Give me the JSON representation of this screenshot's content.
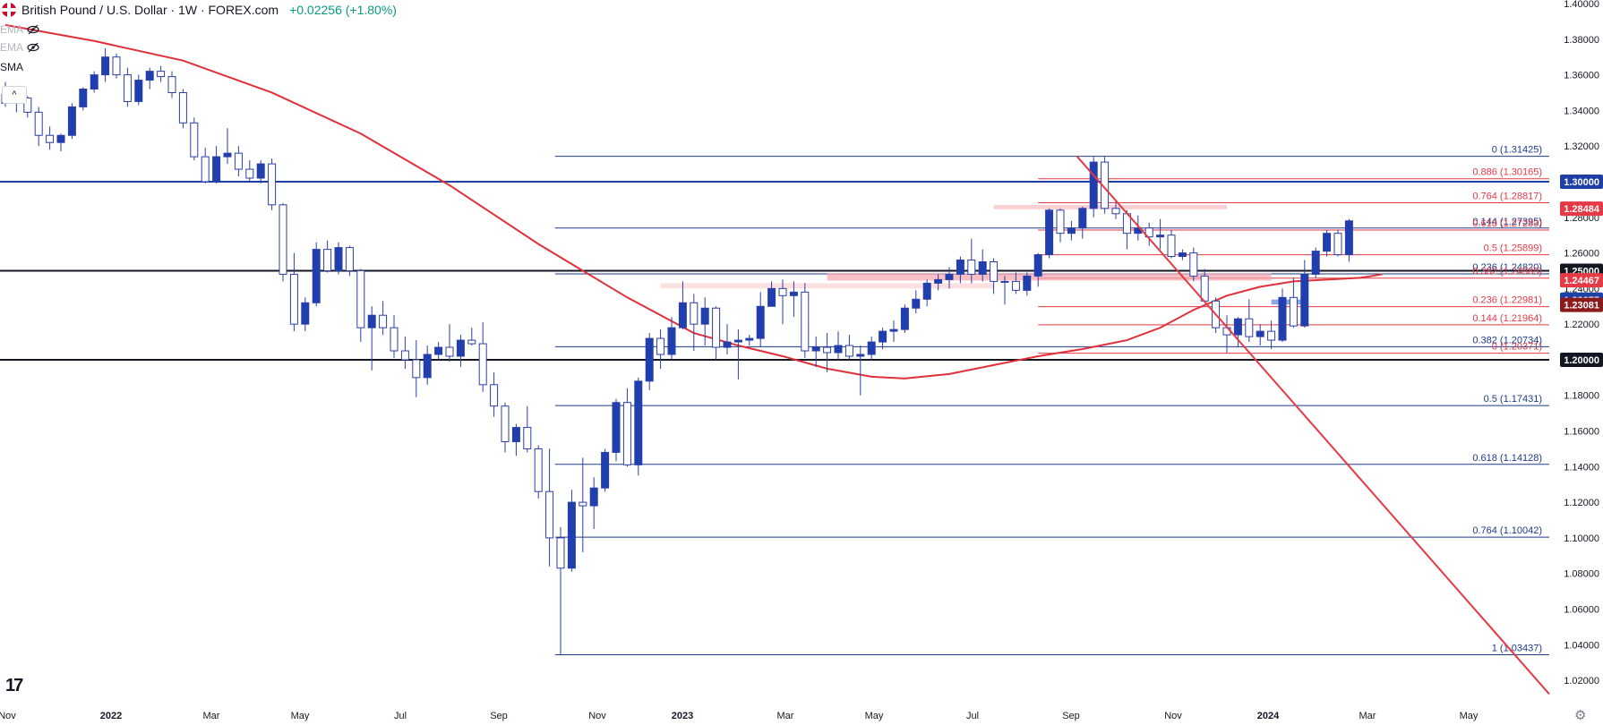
{
  "header": {
    "title": "British Pound / U.S. Dollar · 1W · FOREX.com",
    "change": "+0.02256 (+1.80%)"
  },
  "indicators": [
    "EMA",
    "EMA",
    "SMA"
  ],
  "collapse_glyph": "^",
  "logo_text": "17",
  "colors": {
    "up": "#2962ff",
    "down": "#0d2dbd",
    "bull_body": "#ffffff",
    "bear_body": "#1f3fae",
    "candle_outline": "#2c3fa5",
    "fib_blue": "#1e3a8a",
    "fib_red": "#e53945",
    "ma": "#e0303a",
    "accent_blue": "#1e3fa6",
    "accent_red": "#e53945"
  },
  "chart_data": {
    "type": "candlestick",
    "symbol": "British Pound / U.S. Dollar",
    "timeframe": "1W",
    "ylim": [
      1.01,
      1.4
    ],
    "y_ticks": [
      "1.40000",
      "1.38000",
      "1.36000",
      "1.34000",
      "1.32000",
      "1.30000",
      "1.28000",
      "1.26000",
      "1.24000",
      "1.22000",
      "1.20000",
      "1.18000",
      "1.16000",
      "1.14000",
      "1.12000",
      "1.10000",
      "1.08000",
      "1.06000",
      "1.04000",
      "1.02000"
    ],
    "x_ticks": [
      "Nov",
      "2022",
      "Mar",
      "May",
      "Jul",
      "Sep",
      "Nov",
      "2023",
      "Mar",
      "May",
      "Jul",
      "Sep",
      "Nov",
      "2024",
      "Mar",
      "May"
    ],
    "price_badges": [
      {
        "label": "1.30000",
        "price": 1.3,
        "color": "#1e3fa6"
      },
      {
        "label": "1.28484",
        "price": 1.28484,
        "color": "#e53945"
      },
      {
        "label": "1.25000",
        "price": 1.25,
        "color": "#131722"
      },
      {
        "label": "1.24467",
        "price": 1.24467,
        "color": "#e53945"
      },
      {
        "label": "1.23375",
        "price": 1.23375,
        "color": "#1e3fa6"
      },
      {
        "label": "1.23081",
        "price": 1.23081,
        "color": "#8b1a1a"
      },
      {
        "label": "1.20000",
        "price": 1.2,
        "color": "#131722"
      }
    ],
    "fib_blue": [
      {
        "label": "0 (1.31425)",
        "price": 1.31425
      },
      {
        "label": "0.144 (1.27395)",
        "price": 1.27395
      },
      {
        "label": "0.236 (1.24820)",
        "price": 1.2482
      },
      {
        "label": "0.382 (1.20734)",
        "price": 1.20734
      },
      {
        "label": "0.5 (1.17431)",
        "price": 1.17431
      },
      {
        "label": "0.618 (1.14128)",
        "price": 1.14128
      },
      {
        "label": "0.764 (1.10042)",
        "price": 1.10042
      },
      {
        "label": "1 (1.03437)",
        "price": 1.03437
      }
    ],
    "fib_red": [
      {
        "label": "0.886 (1.30165)",
        "price": 1.30165
      },
      {
        "label": "0.764 (1.28817)",
        "price": 1.28817
      },
      {
        "label": "0.618 (1.27283)",
        "price": 1.27283
      },
      {
        "label": "0.5 (1.25899)",
        "price": 1.25899
      },
      {
        "label": "0.382 (1.24585)",
        "price": 1.24585
      },
      {
        "label": "0.236 (1.22981)",
        "price": 1.22981
      },
      {
        "label": "0.144 (1.21964)",
        "price": 1.21964
      },
      {
        "label": "0 (1.20371)",
        "price": 1.20371
      }
    ],
    "horizontal_levels": [
      {
        "price": 1.3,
        "color": "#1e3fa6"
      },
      {
        "price": 1.25,
        "color": "#131722"
      },
      {
        "price": 1.2,
        "color": "#131722"
      }
    ],
    "candles": [
      [
        1.349,
        1.356,
        1.342,
        1.344
      ],
      [
        1.344,
        1.351,
        1.339,
        1.347
      ],
      [
        1.347,
        1.348,
        1.336,
        1.339
      ],
      [
        1.339,
        1.342,
        1.32,
        1.326
      ],
      [
        1.326,
        1.331,
        1.318,
        1.322
      ],
      [
        1.322,
        1.327,
        1.317,
        1.326
      ],
      [
        1.326,
        1.344,
        1.324,
        1.342
      ],
      [
        1.342,
        1.353,
        1.34,
        1.352
      ],
      [
        1.352,
        1.362,
        1.35,
        1.36
      ],
      [
        1.36,
        1.375,
        1.356,
        1.37
      ],
      [
        1.37,
        1.372,
        1.358,
        1.36
      ],
      [
        1.36,
        1.364,
        1.342,
        1.345
      ],
      [
        1.345,
        1.36,
        1.343,
        1.357
      ],
      [
        1.357,
        1.364,
        1.352,
        1.362
      ],
      [
        1.362,
        1.365,
        1.356,
        1.359
      ],
      [
        1.359,
        1.362,
        1.347,
        1.35
      ],
      [
        1.35,
        1.352,
        1.33,
        1.333
      ],
      [
        1.333,
        1.336,
        1.312,
        1.314
      ],
      [
        1.314,
        1.319,
        1.299,
        1.3
      ],
      [
        1.3,
        1.32,
        1.299,
        1.314
      ],
      [
        1.314,
        1.33,
        1.31,
        1.316
      ],
      [
        1.316,
        1.32,
        1.303,
        1.307
      ],
      [
        1.307,
        1.312,
        1.3,
        1.302
      ],
      [
        1.302,
        1.312,
        1.299,
        1.31
      ],
      [
        1.31,
        1.313,
        1.284,
        1.287
      ],
      [
        1.287,
        1.288,
        1.244,
        1.248
      ],
      [
        1.248,
        1.26,
        1.216,
        1.22
      ],
      [
        1.22,
        1.235,
        1.216,
        1.232
      ],
      [
        1.232,
        1.266,
        1.23,
        1.262
      ],
      [
        1.262,
        1.267,
        1.249,
        1.25
      ],
      [
        1.25,
        1.266,
        1.248,
        1.263
      ],
      [
        1.263,
        1.264,
        1.247,
        1.25
      ],
      [
        1.25,
        1.251,
        1.21,
        1.218
      ],
      [
        1.218,
        1.23,
        1.194,
        1.225
      ],
      [
        1.225,
        1.233,
        1.214,
        1.218
      ],
      [
        1.218,
        1.225,
        1.201,
        1.205
      ],
      [
        1.205,
        1.213,
        1.195,
        1.2
      ],
      [
        1.2,
        1.211,
        1.179,
        1.19
      ],
      [
        1.19,
        1.208,
        1.186,
        1.203
      ],
      [
        1.203,
        1.21,
        1.2,
        1.207
      ],
      [
        1.207,
        1.22,
        1.199,
        1.202
      ],
      [
        1.202,
        1.214,
        1.196,
        1.211
      ],
      [
        1.211,
        1.218,
        1.208,
        1.209
      ],
      [
        1.209,
        1.221,
        1.182,
        1.186
      ],
      [
        1.186,
        1.193,
        1.168,
        1.174
      ],
      [
        1.174,
        1.176,
        1.148,
        1.154
      ],
      [
        1.154,
        1.164,
        1.146,
        1.162
      ],
      [
        1.162,
        1.174,
        1.148,
        1.15
      ],
      [
        1.15,
        1.152,
        1.122,
        1.126
      ],
      [
        1.126,
        1.15,
        1.084,
        1.1
      ],
      [
        1.1,
        1.106,
        1.034,
        1.083
      ],
      [
        1.083,
        1.127,
        1.081,
        1.12
      ],
      [
        1.12,
        1.145,
        1.092,
        1.118
      ],
      [
        1.118,
        1.134,
        1.105,
        1.128
      ],
      [
        1.128,
        1.15,
        1.126,
        1.148
      ],
      [
        1.148,
        1.178,
        1.143,
        1.176
      ],
      [
        1.176,
        1.184,
        1.14,
        1.141
      ],
      [
        1.141,
        1.19,
        1.135,
        1.188
      ],
      [
        1.188,
        1.215,
        1.183,
        1.212
      ],
      [
        1.212,
        1.217,
        1.195,
        1.203
      ],
      [
        1.203,
        1.224,
        1.2,
        1.218
      ],
      [
        1.218,
        1.244,
        1.217,
        1.232
      ],
      [
        1.232,
        1.237,
        1.205,
        1.22
      ],
      [
        1.22,
        1.235,
        1.208,
        1.229
      ],
      [
        1.229,
        1.23,
        1.2,
        1.207
      ],
      [
        1.207,
        1.22,
        1.203,
        1.21
      ],
      [
        1.21,
        1.217,
        1.189,
        1.211
      ],
      [
        1.211,
        1.214,
        1.208,
        1.212
      ],
      [
        1.212,
        1.238,
        1.207,
        1.23
      ],
      [
        1.23,
        1.244,
        1.23,
        1.24
      ],
      [
        1.24,
        1.245,
        1.22,
        1.236
      ],
      [
        1.236,
        1.244,
        1.224,
        1.238
      ],
      [
        1.238,
        1.243,
        1.201,
        1.205
      ],
      [
        1.205,
        1.213,
        1.196,
        1.207
      ],
      [
        1.207,
        1.215,
        1.193,
        1.204
      ],
      [
        1.204,
        1.216,
        1.2,
        1.208
      ],
      [
        1.208,
        1.214,
        1.2,
        1.202
      ],
      [
        1.202,
        1.208,
        1.18,
        1.203
      ],
      [
        1.203,
        1.213,
        1.2,
        1.21
      ],
      [
        1.21,
        1.218,
        1.206,
        1.216
      ],
      [
        1.216,
        1.222,
        1.21,
        1.217
      ],
      [
        1.217,
        1.231,
        1.215,
        1.229
      ],
      [
        1.229,
        1.239,
        1.226,
        1.234
      ],
      [
        1.234,
        1.245,
        1.23,
        1.243
      ],
      [
        1.243,
        1.248,
        1.239,
        1.245
      ],
      [
        1.245,
        1.252,
        1.24,
        1.248
      ],
      [
        1.248,
        1.258,
        1.243,
        1.256
      ],
      [
        1.256,
        1.268,
        1.243,
        1.248
      ],
      [
        1.248,
        1.262,
        1.244,
        1.255
      ],
      [
        1.255,
        1.257,
        1.237,
        1.244
      ],
      [
        1.244,
        1.247,
        1.231,
        1.244
      ],
      [
        1.244,
        1.249,
        1.237,
        1.239
      ],
      [
        1.239,
        1.249,
        1.236,
        1.247
      ],
      [
        1.247,
        1.26,
        1.241,
        1.259
      ],
      [
        1.259,
        1.285,
        1.257,
        1.284
      ],
      [
        1.284,
        1.285,
        1.266,
        1.271
      ],
      [
        1.271,
        1.278,
        1.267,
        1.274
      ],
      [
        1.274,
        1.286,
        1.268,
        1.285
      ],
      [
        1.285,
        1.314,
        1.28,
        1.311
      ],
      [
        1.311,
        1.314,
        1.282,
        1.285
      ],
      [
        1.285,
        1.29,
        1.279,
        1.282
      ],
      [
        1.282,
        1.284,
        1.262,
        1.271
      ],
      [
        1.271,
        1.281,
        1.267,
        1.274
      ],
      [
        1.274,
        1.277,
        1.264,
        1.269
      ],
      [
        1.269,
        1.279,
        1.262,
        1.27
      ],
      [
        1.27,
        1.273,
        1.257,
        1.258
      ],
      [
        1.258,
        1.262,
        1.256,
        1.26
      ],
      [
        1.26,
        1.263,
        1.244,
        1.247
      ],
      [
        1.247,
        1.251,
        1.233,
        1.233
      ],
      [
        1.233,
        1.235,
        1.215,
        1.218
      ],
      [
        1.218,
        1.225,
        1.204,
        1.214
      ],
      [
        1.214,
        1.224,
        1.207,
        1.223
      ],
      [
        1.223,
        1.234,
        1.21,
        1.213
      ],
      [
        1.213,
        1.22,
        1.208,
        1.216
      ],
      [
        1.216,
        1.222,
        1.206,
        1.211
      ],
      [
        1.211,
        1.24,
        1.21,
        1.235
      ],
      [
        1.235,
        1.246,
        1.218,
        1.219
      ],
      [
        1.219,
        1.256,
        1.218,
        1.248
      ],
      [
        1.248,
        1.263,
        1.246,
        1.261
      ],
      [
        1.261,
        1.273,
        1.258,
        1.271
      ],
      [
        1.271,
        1.273,
        1.258,
        1.259
      ],
      [
        1.259,
        1.279,
        1.255,
        1.278
      ]
    ],
    "moving_average": [
      [
        0,
        1.388
      ],
      [
        8,
        1.379
      ],
      [
        16,
        1.368
      ],
      [
        24,
        1.35
      ],
      [
        32,
        1.327
      ],
      [
        40,
        1.298
      ],
      [
        48,
        1.265
      ],
      [
        56,
        1.235
      ],
      [
        62,
        1.215
      ],
      [
        66,
        1.208
      ],
      [
        70,
        1.202
      ],
      [
        74,
        1.195
      ],
      [
        78,
        1.1905
      ],
      [
        81,
        1.1895
      ],
      [
        85,
        1.192
      ],
      [
        89,
        1.197
      ],
      [
        93,
        1.202
      ],
      [
        97,
        1.206
      ],
      [
        101,
        1.211
      ],
      [
        104,
        1.218
      ],
      [
        107,
        1.228
      ],
      [
        110,
        1.236
      ],
      [
        113,
        1.241
      ],
      [
        116,
        1.244
      ],
      [
        119,
        1.245
      ],
      [
        122,
        1.246
      ],
      [
        124,
        1.248
      ]
    ]
  }
}
